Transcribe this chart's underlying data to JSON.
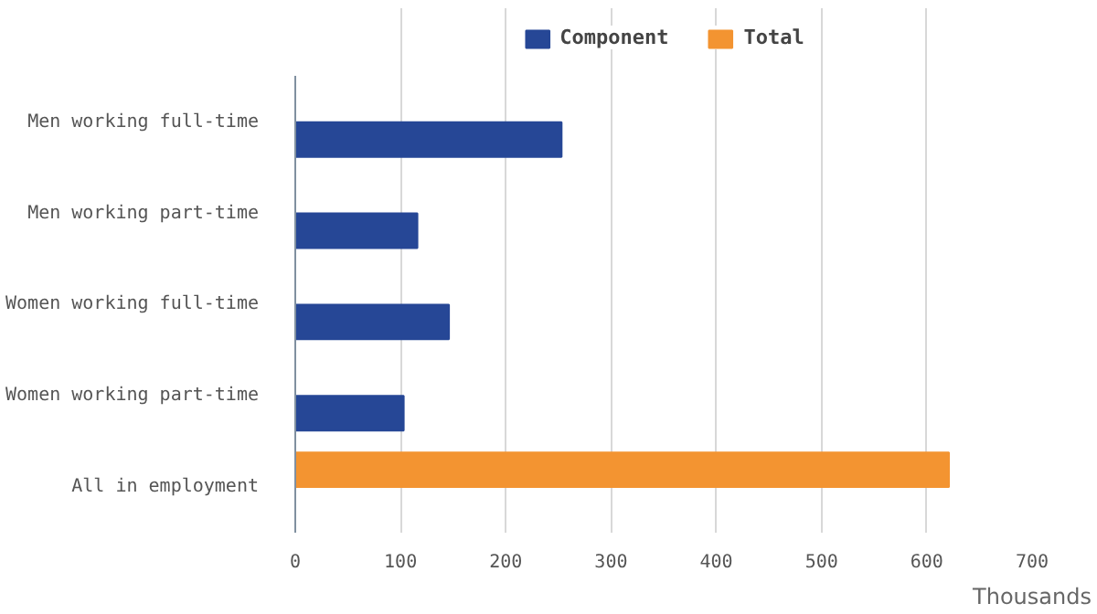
{
  "chart_data": {
    "type": "bar",
    "orientation": "horizontal",
    "xlabel": "Thousands",
    "categories": [
      "Men working full-time",
      "Men working part-time",
      "Women working full-time",
      "Women working part-time",
      "All in employment"
    ],
    "series": [
      {
        "name": "Component",
        "color": "#264796",
        "values": [
          253,
          116,
          146,
          103,
          null
        ]
      },
      {
        "name": "Total",
        "color": "#f39431",
        "values": [
          null,
          null,
          null,
          null,
          621
        ]
      }
    ],
    "xlim": [
      0,
      700
    ],
    "xticks": [
      0,
      100,
      200,
      300,
      400,
      500,
      600,
      700
    ],
    "grid": "x",
    "legend": "top"
  }
}
